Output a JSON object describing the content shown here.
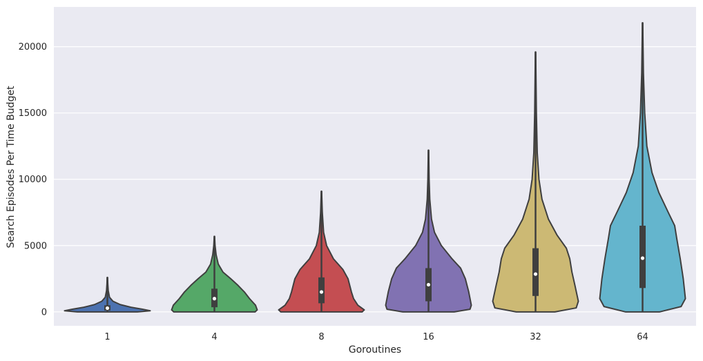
{
  "chart_data": {
    "type": "violin",
    "title": "",
    "xlabel": "Goroutines",
    "ylabel": "Search Episodes Per Time Budget",
    "categories": [
      "1",
      "4",
      "8",
      "16",
      "32",
      "64"
    ],
    "ylim": [
      -1050,
      23000
    ],
    "yticks": [
      0,
      5000,
      10000,
      15000,
      20000
    ],
    "ytick_labels": [
      "0",
      "5000",
      "10000",
      "15000",
      "20000"
    ],
    "grid": true,
    "style": {
      "plot_bg": "#eaeaf2",
      "grid_color": "#ffffff",
      "outline_color": "#3f3f3f"
    },
    "series": [
      {
        "category": "1",
        "color": "#4c72b0",
        "min": 0,
        "q1": 100,
        "median": 280,
        "q3": 500,
        "max": 2600,
        "density": [
          [
            0,
            0.7
          ],
          [
            80,
            1.0
          ],
          [
            200,
            0.82
          ],
          [
            350,
            0.55
          ],
          [
            550,
            0.3
          ],
          [
            800,
            0.13
          ],
          [
            1100,
            0.05
          ],
          [
            1600,
            0.02
          ],
          [
            2100,
            0.01
          ],
          [
            2600,
            0.004
          ]
        ]
      },
      {
        "category": "4",
        "color": "#55a868",
        "min": 0,
        "q1": 350,
        "median": 1000,
        "q3": 1750,
        "max": 5700,
        "density": [
          [
            0,
            0.95
          ],
          [
            150,
            1.0
          ],
          [
            500,
            0.96
          ],
          [
            1000,
            0.82
          ],
          [
            1500,
            0.7
          ],
          [
            2000,
            0.55
          ],
          [
            2500,
            0.38
          ],
          [
            3000,
            0.2
          ],
          [
            3600,
            0.09
          ],
          [
            4300,
            0.04
          ],
          [
            5000,
            0.015
          ],
          [
            5700,
            0.004
          ]
        ]
      },
      {
        "category": "8",
        "color": "#c44e52",
        "min": 0,
        "q1": 650,
        "median": 1500,
        "q3": 2600,
        "max": 9100,
        "density": [
          [
            0,
            0.95
          ],
          [
            150,
            1.0
          ],
          [
            500,
            0.85
          ],
          [
            1000,
            0.75
          ],
          [
            1500,
            0.7
          ],
          [
            2500,
            0.62
          ],
          [
            3200,
            0.5
          ],
          [
            4000,
            0.28
          ],
          [
            5000,
            0.12
          ],
          [
            6000,
            0.05
          ],
          [
            7500,
            0.02
          ],
          [
            9100,
            0.004
          ]
        ]
      },
      {
        "category": "16",
        "color": "#8172b2",
        "min": 0,
        "q1": 800,
        "median": 2050,
        "q3": 3300,
        "max": 12200,
        "density": [
          [
            0,
            0.6
          ],
          [
            200,
            0.97
          ],
          [
            500,
            1.0
          ],
          [
            1500,
            0.94
          ],
          [
            2500,
            0.86
          ],
          [
            3300,
            0.75
          ],
          [
            4000,
            0.55
          ],
          [
            5000,
            0.3
          ],
          [
            6000,
            0.14
          ],
          [
            7000,
            0.07
          ],
          [
            8500,
            0.03
          ],
          [
            10000,
            0.015
          ],
          [
            12200,
            0.004
          ]
        ]
      },
      {
        "category": "32",
        "color": "#ccb974",
        "min": 0,
        "q1": 1200,
        "median": 2850,
        "q3": 4800,
        "max": 19600,
        "density": [
          [
            0,
            0.45
          ],
          [
            300,
            0.95
          ],
          [
            800,
            1.0
          ],
          [
            2000,
            0.92
          ],
          [
            3000,
            0.85
          ],
          [
            4000,
            0.8
          ],
          [
            4800,
            0.72
          ],
          [
            5800,
            0.5
          ],
          [
            7000,
            0.3
          ],
          [
            8500,
            0.15
          ],
          [
            10000,
            0.08
          ],
          [
            12000,
            0.04
          ],
          [
            15000,
            0.02
          ],
          [
            19600,
            0.004
          ]
        ]
      },
      {
        "category": "64",
        "color": "#64b5cd",
        "min": 0,
        "q1": 1800,
        "median": 4050,
        "q3": 6500,
        "max": 21800,
        "density": [
          [
            0,
            0.4
          ],
          [
            400,
            0.9
          ],
          [
            1000,
            1.0
          ],
          [
            2500,
            0.95
          ],
          [
            4000,
            0.88
          ],
          [
            5500,
            0.8
          ],
          [
            6500,
            0.75
          ],
          [
            7500,
            0.6
          ],
          [
            9000,
            0.38
          ],
          [
            10500,
            0.22
          ],
          [
            12500,
            0.1
          ],
          [
            15000,
            0.05
          ],
          [
            18000,
            0.02
          ],
          [
            21800,
            0.004
          ]
        ]
      }
    ]
  }
}
